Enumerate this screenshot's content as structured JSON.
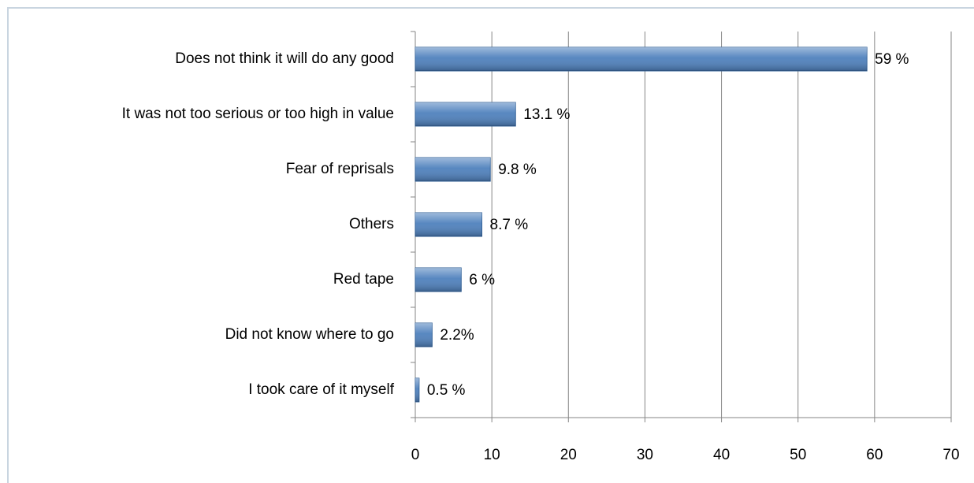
{
  "chart_data": {
    "type": "bar",
    "orientation": "horizontal",
    "categories": [
      "Does not think it will do any good",
      "It was not too serious or too high in value",
      "Fear of reprisals",
      "Others",
      "Red tape",
      "Did not know where to go",
      "I took care of it myself"
    ],
    "values": [
      59,
      13.1,
      9.8,
      8.7,
      6,
      2.2,
      0.5
    ],
    "value_labels": [
      "59 %",
      "13.1 %",
      "9.8 %",
      "8.7 %",
      "6 %",
      "2.2%",
      "0.5 %"
    ],
    "color": "#4f81bd",
    "xlim": [
      0,
      70
    ],
    "xticks": [
      0,
      10,
      20,
      30,
      40,
      50,
      60,
      70
    ],
    "grid": true
  }
}
